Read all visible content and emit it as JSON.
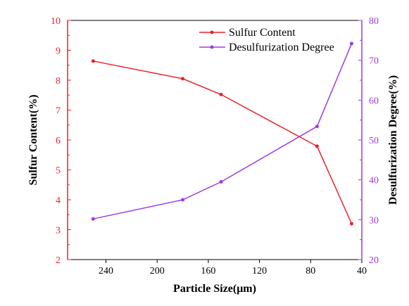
{
  "chart_data": {
    "type": "line",
    "title": "",
    "xlabel": "Particle Size(μm)",
    "ylabel_left": "Sulfur Content(%)",
    "ylabel_right": "Desulfurization Degree(%)",
    "x_reversed": true,
    "xlim": [
      270,
      40
    ],
    "ylim_left": [
      2,
      10
    ],
    "ylim_right": [
      20,
      80
    ],
    "x_ticks": [
      240,
      200,
      160,
      120,
      80,
      40
    ],
    "y_ticks_left": [
      2,
      3,
      4,
      5,
      6,
      7,
      8,
      9,
      10
    ],
    "y_ticks_right": [
      20,
      30,
      40,
      50,
      60,
      70,
      80
    ],
    "grid": false,
    "legend_position": "top-right",
    "series": [
      {
        "name": "Sulfur Content",
        "axis": "left",
        "color": "#e8232a",
        "x": [
          250,
          180,
          150,
          75,
          48
        ],
        "y": [
          8.64,
          8.05,
          7.52,
          5.79,
          3.2
        ]
      },
      {
        "name": "Desulfurization Degree",
        "axis": "right",
        "color": "#9b3ce6",
        "x": [
          250,
          180,
          150,
          75,
          48
        ],
        "y": [
          30.2,
          35,
          39.5,
          53.4,
          74.2
        ]
      }
    ],
    "colors": {
      "left_axis": "#e8232a",
      "right_axis": "#9b3ce6",
      "bottom_axis": "#000000"
    }
  }
}
